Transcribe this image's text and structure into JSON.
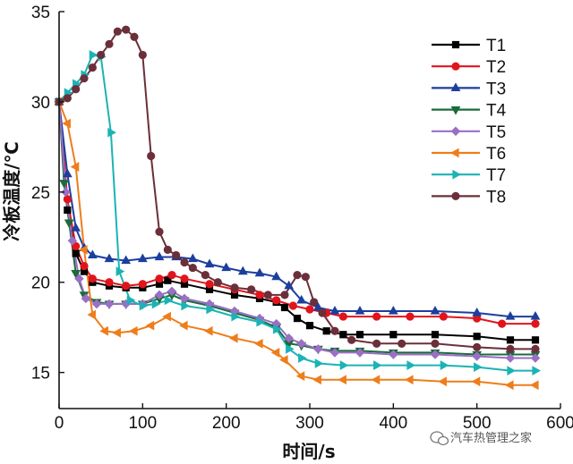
{
  "chart_data": {
    "type": "line",
    "title": "",
    "xlabel": "时间/s",
    "ylabel": "冷板温度/℃",
    "xlim": [
      0,
      600
    ],
    "ylim": [
      13,
      35
    ],
    "xticks": [
      0,
      100,
      200,
      300,
      400,
      500,
      600
    ],
    "yticks": [
      15,
      20,
      25,
      30,
      35
    ],
    "grid": false,
    "legend_position": "top-right",
    "series": [
      {
        "name": "T1",
        "color": "#000000",
        "marker": "square",
        "points": [
          [
            0,
            30
          ],
          [
            10,
            24
          ],
          [
            20,
            21.6
          ],
          [
            30,
            20.6
          ],
          [
            40,
            20
          ],
          [
            60,
            19.8
          ],
          [
            80,
            19.7
          ],
          [
            100,
            19.7
          ],
          [
            120,
            19.9
          ],
          [
            130,
            20.1
          ],
          [
            150,
            19.9
          ],
          [
            180,
            19.6
          ],
          [
            210,
            19.3
          ],
          [
            240,
            19.1
          ],
          [
            260,
            18.9
          ],
          [
            270,
            18.6
          ],
          [
            285,
            18
          ],
          [
            300,
            17.6
          ],
          [
            320,
            17.3
          ],
          [
            340,
            17.1
          ],
          [
            360,
            17.1
          ],
          [
            400,
            17.1
          ],
          [
            450,
            17.1
          ],
          [
            500,
            17
          ],
          [
            540,
            16.8
          ],
          [
            570,
            16.8
          ]
        ]
      },
      {
        "name": "T2",
        "color": "#e0151b",
        "marker": "circle",
        "points": [
          [
            0,
            30
          ],
          [
            10,
            24.6
          ],
          [
            20,
            22
          ],
          [
            30,
            20.9
          ],
          [
            40,
            20.2
          ],
          [
            60,
            20
          ],
          [
            80,
            19.8
          ],
          [
            100,
            19.9
          ],
          [
            120,
            20.2
          ],
          [
            135,
            20.4
          ],
          [
            150,
            20.2
          ],
          [
            180,
            19.9
          ],
          [
            210,
            19.6
          ],
          [
            240,
            19.3
          ],
          [
            260,
            19
          ],
          [
            280,
            18.7
          ],
          [
            300,
            18.5
          ],
          [
            320,
            18.3
          ],
          [
            340,
            18.1
          ],
          [
            380,
            18.1
          ],
          [
            420,
            18.1
          ],
          [
            460,
            18.1
          ],
          [
            500,
            18
          ],
          [
            530,
            17.7
          ],
          [
            570,
            17.7
          ]
        ]
      },
      {
        "name": "T3",
        "color": "#1c3f9e",
        "marker": "triangle-up",
        "points": [
          [
            0,
            30
          ],
          [
            10,
            26
          ],
          [
            20,
            23
          ],
          [
            30,
            21.9
          ],
          [
            40,
            21.5
          ],
          [
            60,
            21.3
          ],
          [
            80,
            21.2
          ],
          [
            100,
            21.3
          ],
          [
            120,
            21.4
          ],
          [
            140,
            21.4
          ],
          [
            160,
            21.3
          ],
          [
            180,
            21
          ],
          [
            200,
            20.8
          ],
          [
            220,
            20.6
          ],
          [
            240,
            20.5
          ],
          [
            260,
            20.3
          ],
          [
            275,
            19.8
          ],
          [
            290,
            19
          ],
          [
            310,
            18.6
          ],
          [
            330,
            18.4
          ],
          [
            360,
            18.4
          ],
          [
            400,
            18.4
          ],
          [
            450,
            18.4
          ],
          [
            500,
            18.3
          ],
          [
            540,
            18.1
          ],
          [
            570,
            18.1
          ]
        ]
      },
      {
        "name": "T4",
        "color": "#1b6b3a",
        "marker": "triangle-down",
        "points": [
          [
            0,
            30
          ],
          [
            6,
            25.5
          ],
          [
            12,
            23.3
          ],
          [
            20,
            20.5
          ],
          [
            30,
            19.3
          ],
          [
            45,
            18.9
          ],
          [
            60,
            18.8
          ],
          [
            80,
            18.8
          ],
          [
            100,
            18.8
          ],
          [
            120,
            19.1
          ],
          [
            135,
            19.3
          ],
          [
            150,
            19
          ],
          [
            180,
            18.7
          ],
          [
            210,
            18.3
          ],
          [
            240,
            17.9
          ],
          [
            260,
            17.5
          ],
          [
            275,
            16.6
          ],
          [
            290,
            16.5
          ],
          [
            310,
            16.3
          ],
          [
            330,
            16.2
          ],
          [
            360,
            16.2
          ],
          [
            400,
            16.1
          ],
          [
            450,
            16.1
          ],
          [
            500,
            16
          ],
          [
            540,
            16
          ],
          [
            570,
            16
          ]
        ]
      },
      {
        "name": "T5",
        "color": "#9a6fc4",
        "marker": "diamond",
        "points": [
          [
            0,
            30
          ],
          [
            8,
            25
          ],
          [
            16,
            22.3
          ],
          [
            24,
            20.2
          ],
          [
            32,
            19.1
          ],
          [
            45,
            18.8
          ],
          [
            60,
            18.8
          ],
          [
            80,
            18.8
          ],
          [
            100,
            18.8
          ],
          [
            120,
            19.3
          ],
          [
            135,
            19.5
          ],
          [
            150,
            19.1
          ],
          [
            180,
            18.8
          ],
          [
            210,
            18.4
          ],
          [
            240,
            18
          ],
          [
            260,
            17.7
          ],
          [
            275,
            16.9
          ],
          [
            290,
            16.6
          ],
          [
            310,
            16.3
          ],
          [
            330,
            16.1
          ],
          [
            360,
            16.1
          ],
          [
            400,
            16
          ],
          [
            450,
            16
          ],
          [
            500,
            15.9
          ],
          [
            540,
            15.8
          ],
          [
            570,
            15.8
          ]
        ]
      },
      {
        "name": "T6",
        "color": "#ee7d1c",
        "marker": "triangle-left",
        "points": [
          [
            0,
            30
          ],
          [
            10,
            28.8
          ],
          [
            20,
            26.4
          ],
          [
            30,
            21.8
          ],
          [
            40,
            18.2
          ],
          [
            55,
            17.3
          ],
          [
            70,
            17.2
          ],
          [
            90,
            17.3
          ],
          [
            110,
            17.6
          ],
          [
            130,
            18.1
          ],
          [
            150,
            17.6
          ],
          [
            180,
            17.3
          ],
          [
            210,
            16.9
          ],
          [
            240,
            16.6
          ],
          [
            260,
            16.1
          ],
          [
            270,
            15.7
          ],
          [
            290,
            14.8
          ],
          [
            310,
            14.6
          ],
          [
            340,
            14.6
          ],
          [
            380,
            14.6
          ],
          [
            420,
            14.6
          ],
          [
            460,
            14.5
          ],
          [
            500,
            14.5
          ],
          [
            540,
            14.3
          ],
          [
            570,
            14.3
          ]
        ]
      },
      {
        "name": "T7",
        "color": "#1bb3b5",
        "marker": "triangle-right",
        "points": [
          [
            0,
            30
          ],
          [
            10,
            30.5
          ],
          [
            20,
            31
          ],
          [
            30,
            31.5
          ],
          [
            40,
            32.6
          ],
          [
            50,
            32.5
          ],
          [
            62,
            28.3
          ],
          [
            72,
            20.6
          ],
          [
            85,
            19
          ],
          [
            100,
            18.7
          ],
          [
            115,
            18.8
          ],
          [
            130,
            19
          ],
          [
            150,
            18.7
          ],
          [
            180,
            18.5
          ],
          [
            210,
            18.1
          ],
          [
            240,
            17.8
          ],
          [
            260,
            17.4
          ],
          [
            275,
            16.3
          ],
          [
            290,
            15.8
          ],
          [
            310,
            15.5
          ],
          [
            340,
            15.4
          ],
          [
            380,
            15.4
          ],
          [
            420,
            15.4
          ],
          [
            460,
            15.4
          ],
          [
            500,
            15.3
          ],
          [
            540,
            15.1
          ],
          [
            570,
            15.1
          ]
        ]
      },
      {
        "name": "T8",
        "color": "#6b2f3a",
        "marker": "circle",
        "points": [
          [
            0,
            30
          ],
          [
            10,
            30.2
          ],
          [
            20,
            30.7
          ],
          [
            30,
            31.3
          ],
          [
            40,
            31.9
          ],
          [
            50,
            32.6
          ],
          [
            60,
            33.2
          ],
          [
            70,
            33.9
          ],
          [
            80,
            34
          ],
          [
            90,
            33.6
          ],
          [
            100,
            32.6
          ],
          [
            110,
            27
          ],
          [
            120,
            22.8
          ],
          [
            130,
            21.8
          ],
          [
            140,
            21.5
          ],
          [
            150,
            21.1
          ],
          [
            160,
            20.8
          ],
          [
            175,
            20.4
          ],
          [
            190,
            20
          ],
          [
            210,
            19.7
          ],
          [
            230,
            19.6
          ],
          [
            250,
            19.3
          ],
          [
            270,
            19.3
          ],
          [
            285,
            20.4
          ],
          [
            295,
            20.3
          ],
          [
            305,
            18.9
          ],
          [
            315,
            18.3
          ],
          [
            330,
            17.3
          ],
          [
            350,
            16.8
          ],
          [
            380,
            16.6
          ],
          [
            410,
            16.6
          ],
          [
            450,
            16.6
          ],
          [
            500,
            16.4
          ],
          [
            540,
            16.3
          ],
          [
            570,
            16.3
          ]
        ]
      }
    ]
  },
  "watermark": {
    "text": "汽车热管理之家"
  }
}
